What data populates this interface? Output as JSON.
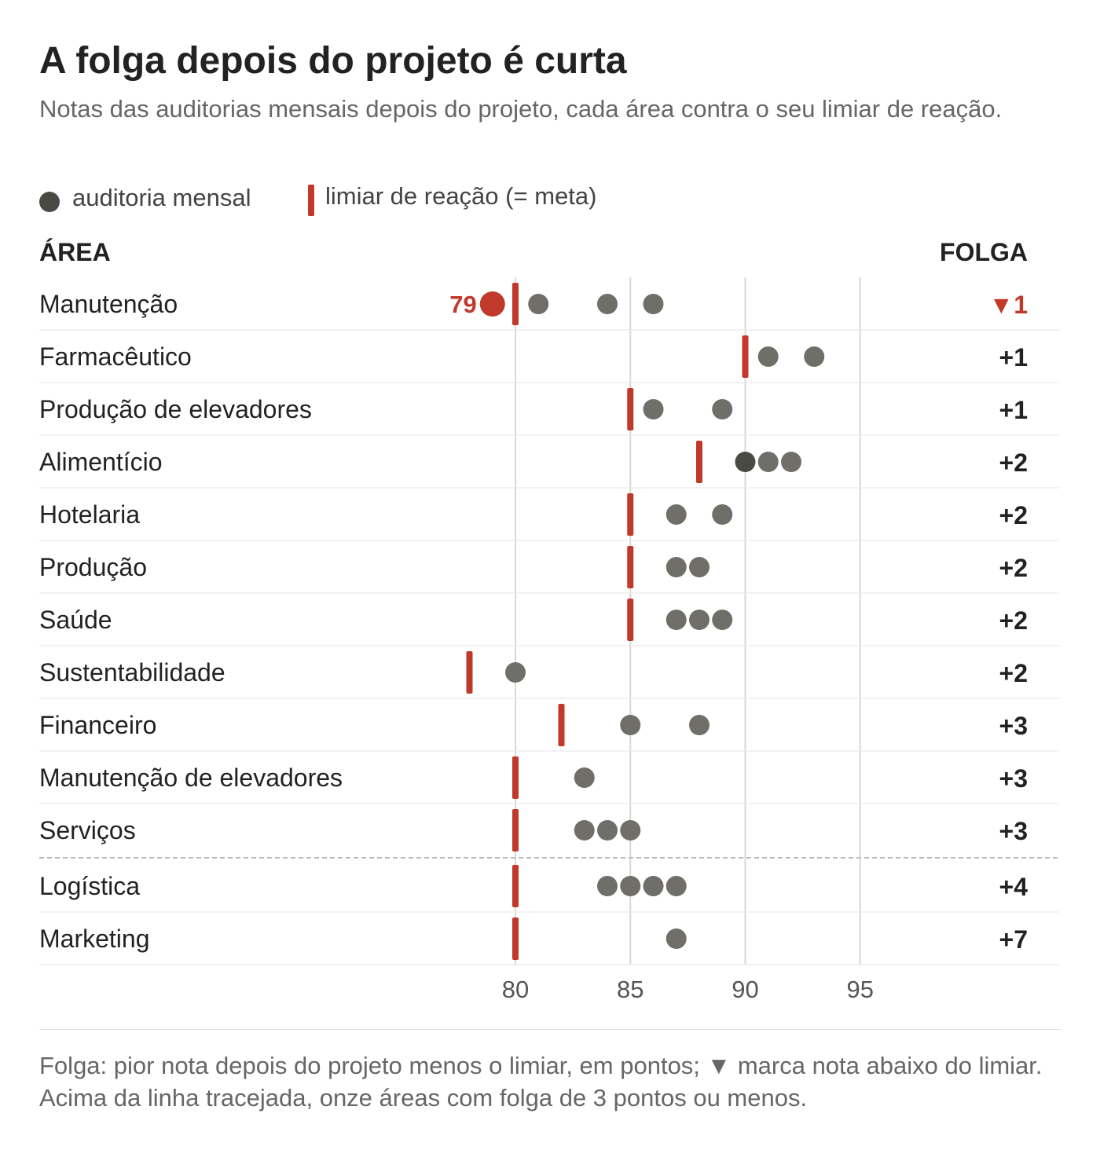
{
  "title": "A folga depois do projeto é curta",
  "subtitle": "Notas das auditorias mensais depois do projeto, cada área contra o seu limiar de reação.",
  "legend": {
    "dot_label": "auditoria mensal",
    "bar_label": "limiar de reação (= meta)"
  },
  "headers": {
    "area": "ÁREA",
    "folga": "FOLGA"
  },
  "colors": {
    "dot": "#6f6e68",
    "dot_dark": "#4a4a44",
    "threshold": "#c0392b",
    "below": "#c0392b",
    "grid": "#d9d8cf",
    "row_rule": "#e6e6e6",
    "text": "#222222"
  },
  "chart_data": {
    "type": "scatter",
    "title": "A folga depois do projeto é curta",
    "x_ticks": [
      80,
      85,
      90,
      95
    ],
    "xlim": [
      78,
      98
    ],
    "grid": "vertical",
    "dashed_separator_after_row": 11,
    "rows": [
      {
        "area": "Manutenção",
        "threshold": 80,
        "scores": [
          79,
          81,
          84,
          86
        ],
        "folga": "▼1",
        "below": true,
        "below_values": [
          79
        ],
        "below_label": "79"
      },
      {
        "area": "Farmacêutico",
        "threshold": 90,
        "scores": [
          91,
          93
        ],
        "folga": "+1",
        "below": false
      },
      {
        "area": "Produção de elevadores",
        "threshold": 85,
        "scores": [
          86,
          89
        ],
        "folga": "+1",
        "below": false
      },
      {
        "area": "Alimentício",
        "threshold": 88,
        "scores": [
          90,
          91,
          92
        ],
        "folga": "+2",
        "below": false,
        "dark_values": [
          90
        ]
      },
      {
        "area": "Hotelaria",
        "threshold": 85,
        "scores": [
          87,
          89
        ],
        "folga": "+2",
        "below": false
      },
      {
        "area": "Produção",
        "threshold": 85,
        "scores": [
          87,
          88
        ],
        "folga": "+2",
        "below": false
      },
      {
        "area": "Saúde",
        "threshold": 85,
        "scores": [
          87,
          88,
          89
        ],
        "folga": "+2",
        "below": false
      },
      {
        "area": "Sustentabilidade",
        "threshold": 78,
        "scores": [
          80
        ],
        "folga": "+2",
        "below": false
      },
      {
        "area": "Financeiro",
        "threshold": 82,
        "scores": [
          85,
          88
        ],
        "folga": "+3",
        "below": false
      },
      {
        "area": "Manutenção de elevadores",
        "threshold": 80,
        "scores": [
          83
        ],
        "folga": "+3",
        "below": false
      },
      {
        "area": "Serviços",
        "threshold": 80,
        "scores": [
          83,
          84,
          85
        ],
        "folga": "+3",
        "below": false
      },
      {
        "area": "Logística",
        "threshold": 80,
        "scores": [
          84,
          85,
          86,
          87
        ],
        "folga": "+4",
        "below": false
      },
      {
        "area": "Marketing",
        "threshold": 80,
        "scores": [
          87
        ],
        "folga": "+7",
        "below": false
      }
    ]
  },
  "footnote": "Folga: pior nota depois do projeto menos o limiar, em pontos; ▼ marca nota abaixo do limiar. Acima da linha tracejada, onze áreas com folga de 3 pontos ou menos."
}
